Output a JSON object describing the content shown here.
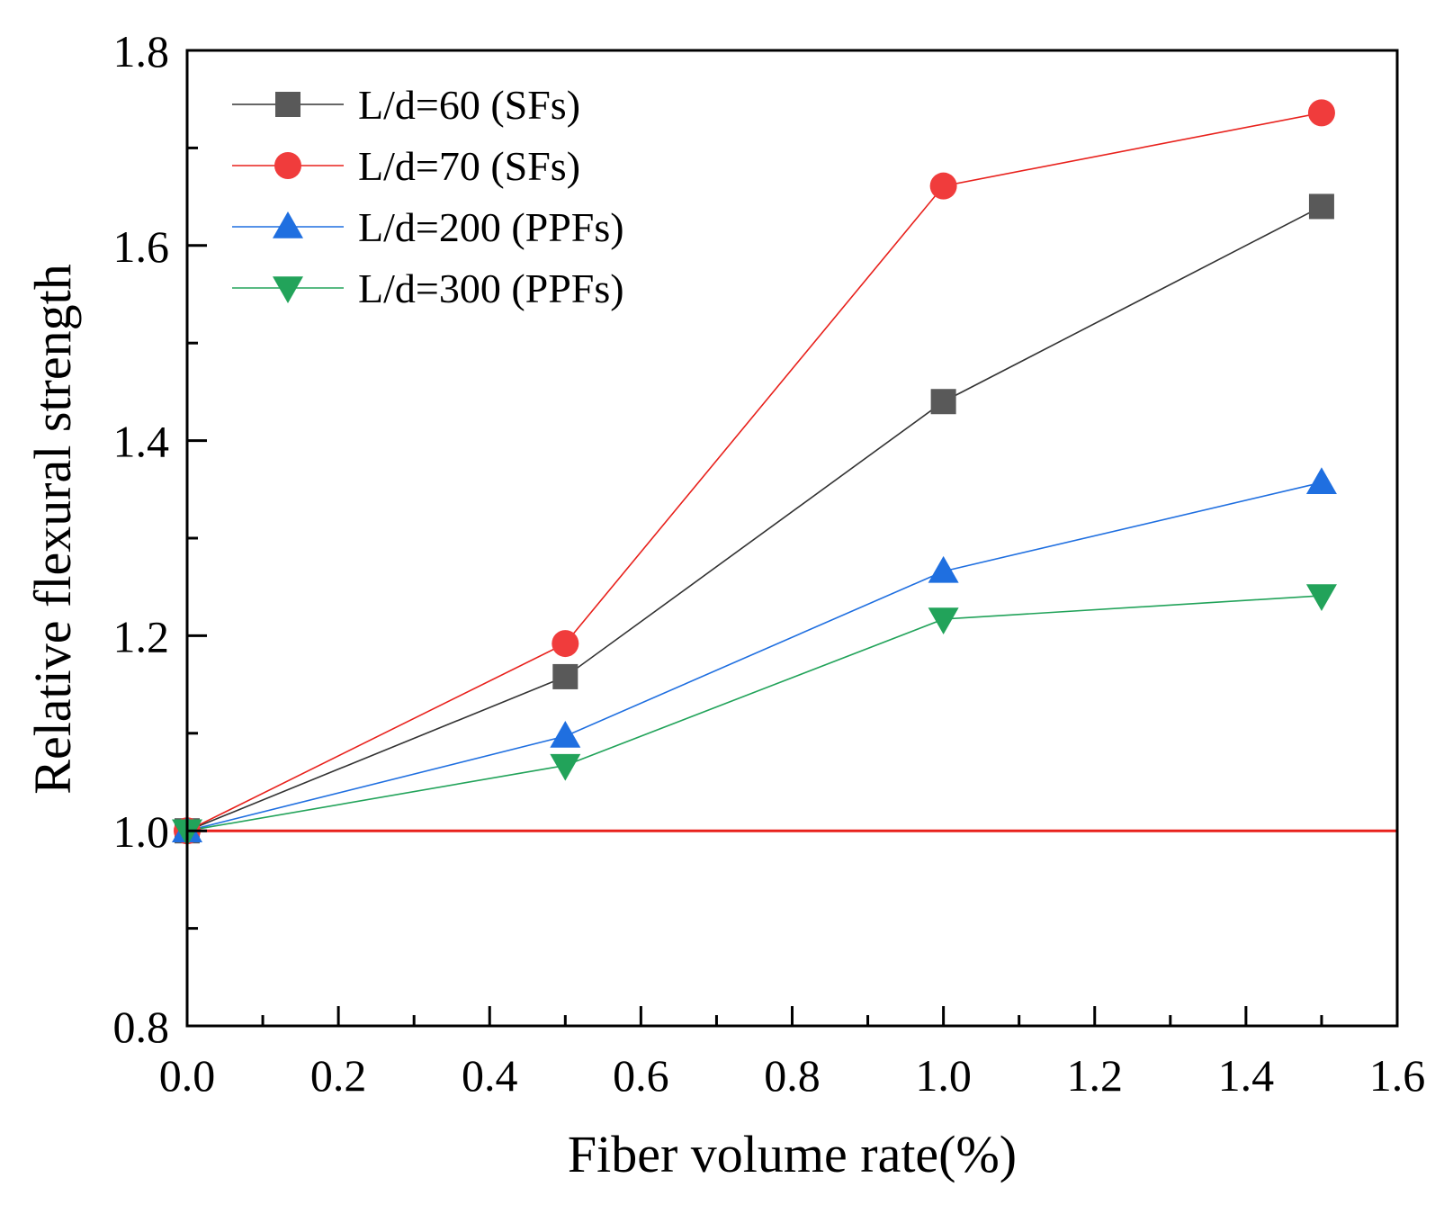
{
  "chart_data": {
    "type": "line",
    "title": "",
    "xlabel": "Fiber volume rate(%)",
    "ylabel": "Relative flexural strength",
    "xlim": [
      0.0,
      1.6
    ],
    "ylim": [
      0.8,
      1.8
    ],
    "xticks": [
      "0.0",
      "0.2",
      "0.4",
      "0.6",
      "0.8",
      "1.0",
      "1.2",
      "1.4",
      "1.6"
    ],
    "yticks": [
      "0.8",
      "1.0",
      "1.2",
      "1.4",
      "1.6",
      "1.8"
    ],
    "grid": false,
    "legend_position": "top-left",
    "reference_line": {
      "y": 1.0,
      "color": "#e8211c"
    },
    "series": [
      {
        "name": "L/d=60 (SFs)",
        "marker": "square",
        "color": "#595959",
        "line_color": "#333333",
        "x": [
          0.0,
          0.5,
          1.0,
          1.5
        ],
        "y": [
          1.0,
          1.158,
          1.44,
          1.64
        ]
      },
      {
        "name": "L/d=70 (SFs)",
        "marker": "circle",
        "color": "#f03c3c",
        "line_color": "#e8211c",
        "x": [
          0.0,
          0.5,
          1.0,
          1.5
        ],
        "y": [
          1.0,
          1.192,
          1.661,
          1.736
        ]
      },
      {
        "name": "L/d=200 (PPFs)",
        "marker": "triangle-up",
        "color": "#1f6fe0",
        "line_color": "#1f6fe0",
        "x": [
          0.0,
          0.5,
          1.0,
          1.5
        ],
        "y": [
          1.0,
          1.097,
          1.266,
          1.357
        ]
      },
      {
        "name": "L/d=300 (PPFs)",
        "marker": "triangle-down",
        "color": "#22a35a",
        "line_color": "#22a35a",
        "x": [
          0.0,
          0.5,
          1.0,
          1.5
        ],
        "y": [
          1.0,
          1.067,
          1.217,
          1.241
        ]
      }
    ]
  }
}
